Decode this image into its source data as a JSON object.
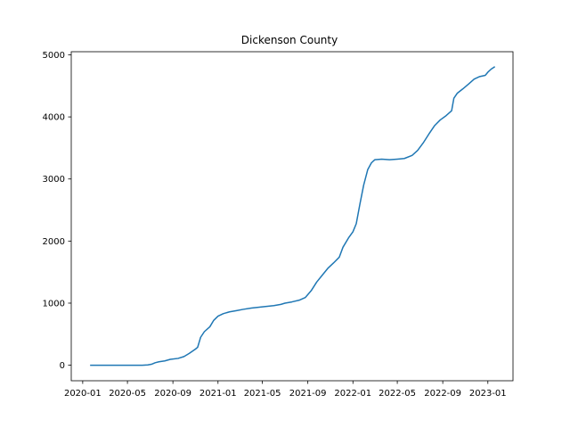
{
  "chart_data": {
    "type": "line",
    "title": "Dickenson County",
    "xlabel": "",
    "ylabel": "",
    "grid": false,
    "x_range": [
      "2019-12-01",
      "2023-03-10"
    ],
    "ylim": [
      -250,
      5050
    ],
    "x_ticks": [
      {
        "date": "2020-01-01",
        "label": "2020-01"
      },
      {
        "date": "2020-05-01",
        "label": "2020-05"
      },
      {
        "date": "2020-09-01",
        "label": "2020-09"
      },
      {
        "date": "2021-01-01",
        "label": "2021-01"
      },
      {
        "date": "2021-05-01",
        "label": "2021-05"
      },
      {
        "date": "2021-09-01",
        "label": "2021-09"
      },
      {
        "date": "2022-01-01",
        "label": "2022-01"
      },
      {
        "date": "2022-05-01",
        "label": "2022-05"
      },
      {
        "date": "2022-09-01",
        "label": "2022-09"
      },
      {
        "date": "2023-01-01",
        "label": "2023-01"
      }
    ],
    "y_ticks": [
      0,
      1000,
      2000,
      3000,
      4000,
      5000
    ],
    "series": [
      {
        "color": "#1f77b4",
        "points": [
          [
            "2020-01-21",
            0
          ],
          [
            "2020-03-01",
            0
          ],
          [
            "2020-05-01",
            0
          ],
          [
            "2020-06-10",
            0
          ],
          [
            "2020-06-25",
            5
          ],
          [
            "2020-07-05",
            15
          ],
          [
            "2020-07-15",
            40
          ],
          [
            "2020-07-25",
            55
          ],
          [
            "2020-08-10",
            70
          ],
          [
            "2020-08-25",
            95
          ],
          [
            "2020-09-15",
            110
          ],
          [
            "2020-10-01",
            140
          ],
          [
            "2020-10-15",
            190
          ],
          [
            "2020-11-01",
            260
          ],
          [
            "2020-11-07",
            290
          ],
          [
            "2020-11-15",
            450
          ],
          [
            "2020-11-25",
            540
          ],
          [
            "2020-12-10",
            620
          ],
          [
            "2020-12-20",
            720
          ],
          [
            "2021-01-01",
            790
          ],
          [
            "2021-01-15",
            830
          ],
          [
            "2021-02-01",
            860
          ],
          [
            "2021-02-20",
            880
          ],
          [
            "2021-03-10",
            900
          ],
          [
            "2021-04-01",
            920
          ],
          [
            "2021-05-01",
            940
          ],
          [
            "2021-06-01",
            960
          ],
          [
            "2021-06-20",
            980
          ],
          [
            "2021-07-01",
            1000
          ],
          [
            "2021-07-20",
            1020
          ],
          [
            "2021-08-10",
            1050
          ],
          [
            "2021-08-25",
            1090
          ],
          [
            "2021-09-10",
            1200
          ],
          [
            "2021-09-25",
            1340
          ],
          [
            "2021-10-10",
            1450
          ],
          [
            "2021-10-25",
            1560
          ],
          [
            "2021-11-10",
            1650
          ],
          [
            "2021-11-25",
            1740
          ],
          [
            "2021-12-05",
            1900
          ],
          [
            "2021-12-20",
            2050
          ],
          [
            "2022-01-01",
            2150
          ],
          [
            "2022-01-10",
            2280
          ],
          [
            "2022-01-20",
            2600
          ],
          [
            "2022-01-30",
            2900
          ],
          [
            "2022-02-10",
            3150
          ],
          [
            "2022-02-20",
            3260
          ],
          [
            "2022-03-01",
            3310
          ],
          [
            "2022-03-20",
            3320
          ],
          [
            "2022-04-10",
            3310
          ],
          [
            "2022-05-01",
            3320
          ],
          [
            "2022-05-20",
            3330
          ],
          [
            "2022-06-10",
            3380
          ],
          [
            "2022-06-25",
            3460
          ],
          [
            "2022-07-10",
            3580
          ],
          [
            "2022-07-25",
            3720
          ],
          [
            "2022-08-10",
            3860
          ],
          [
            "2022-08-25",
            3950
          ],
          [
            "2022-09-10",
            4020
          ],
          [
            "2022-09-25",
            4100
          ],
          [
            "2022-10-01",
            4300
          ],
          [
            "2022-10-10",
            4380
          ],
          [
            "2022-10-25",
            4450
          ],
          [
            "2022-11-10",
            4530
          ],
          [
            "2022-11-25",
            4610
          ],
          [
            "2022-12-10",
            4650
          ],
          [
            "2022-12-25",
            4670
          ],
          [
            "2023-01-01",
            4720
          ],
          [
            "2023-01-10",
            4770
          ],
          [
            "2023-01-20",
            4810
          ]
        ]
      }
    ]
  }
}
